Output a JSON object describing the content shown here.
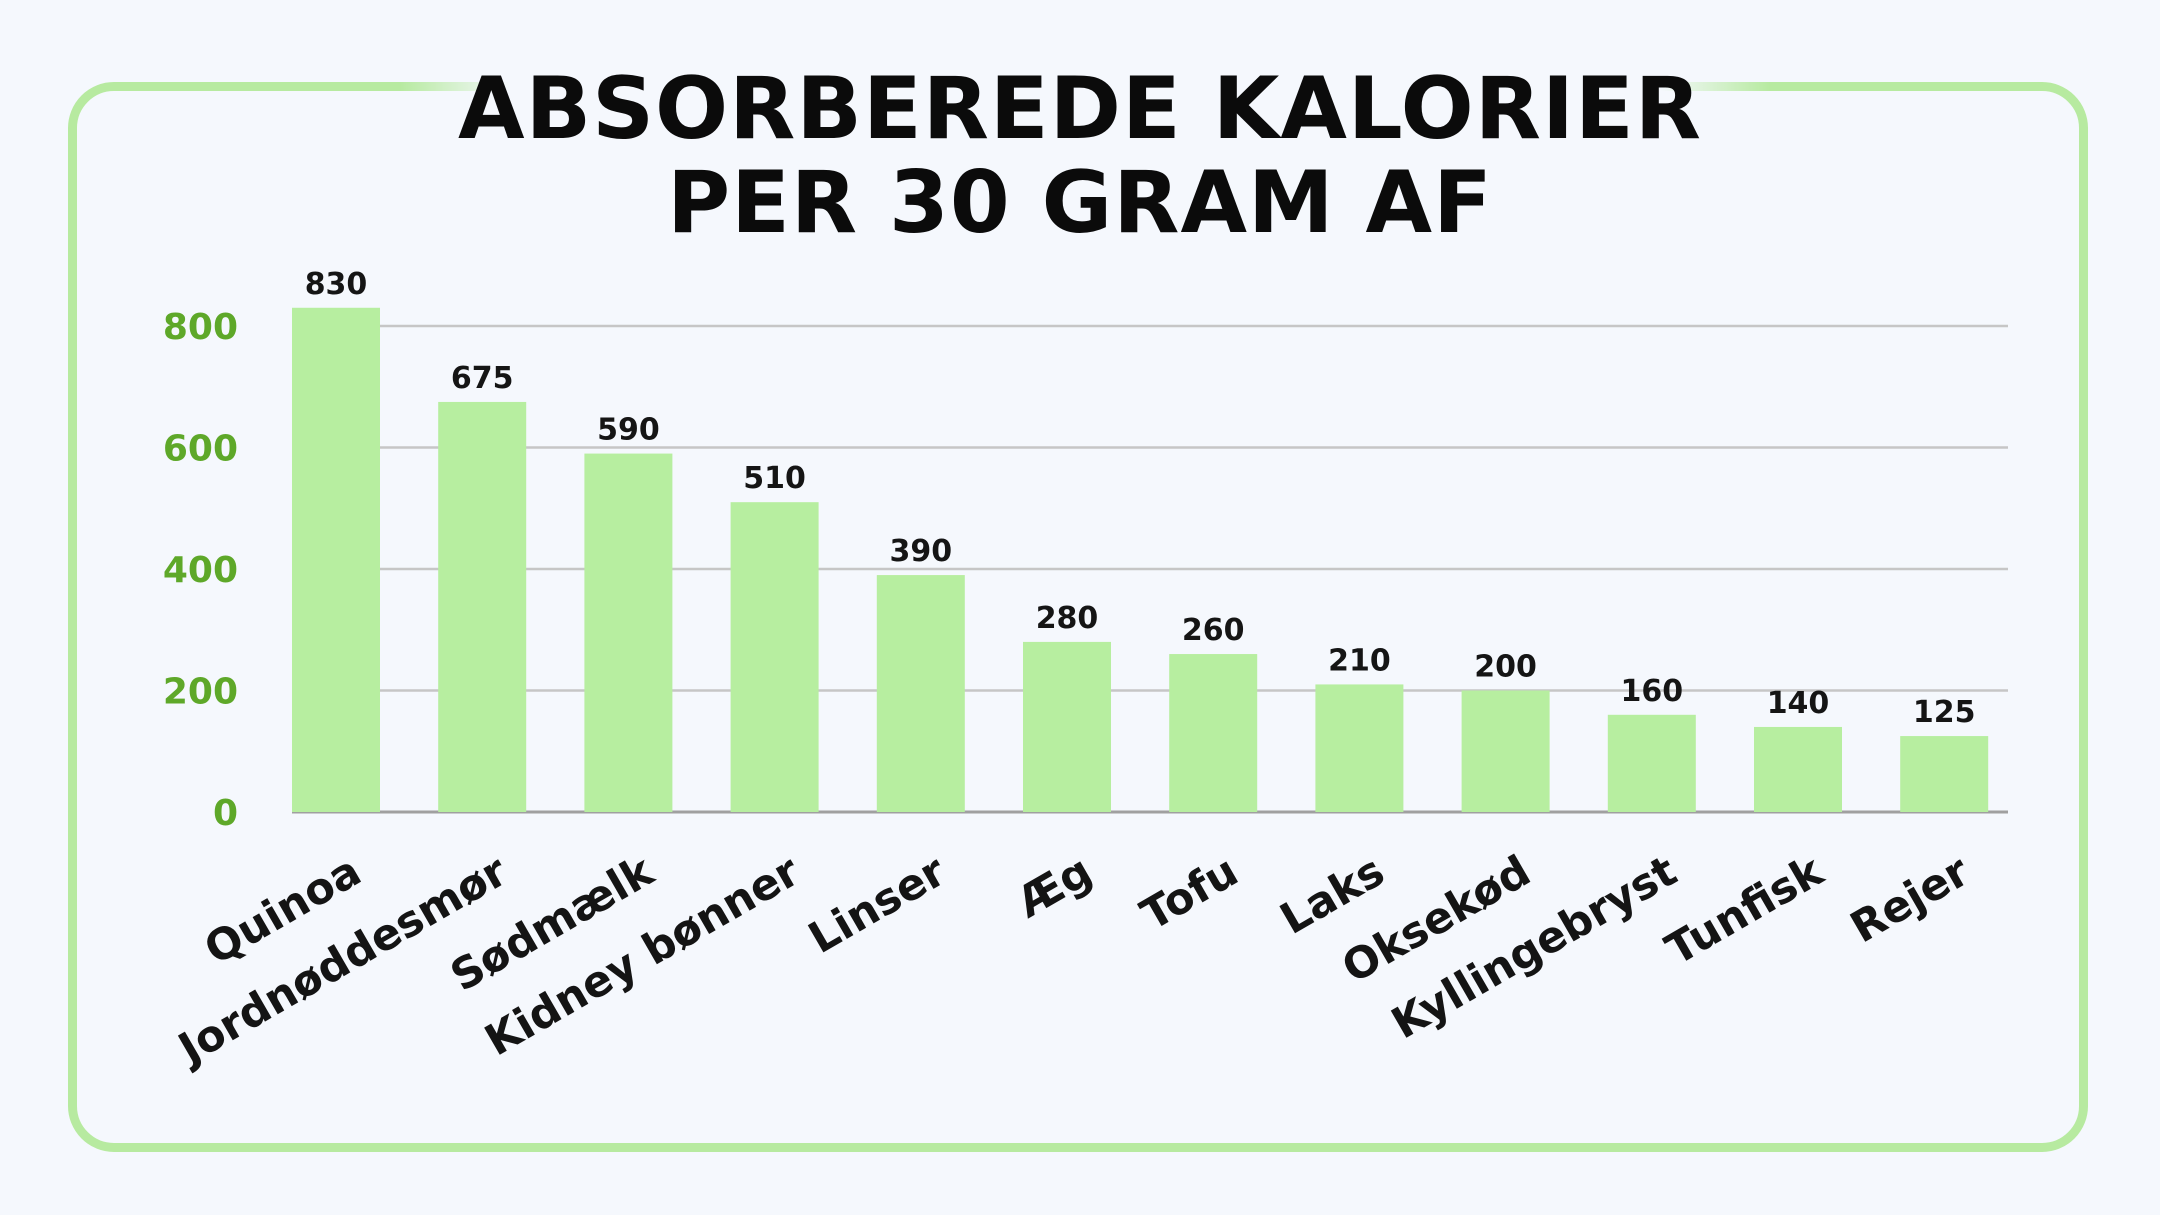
{
  "title_line1": "ABSORBEREDE KALORIER",
  "title_line2": "PER 30 GRAM AF",
  "colors": {
    "bar": "#b7eea0",
    "frame": "#b7eaa0",
    "ytick": "#5ea829",
    "grid": "#c6c6c6",
    "axis": "#a0a0a0"
  },
  "chart_data": {
    "type": "bar",
    "title": "ABSORBEREDE KALORIER PER 30 GRAM AF",
    "categories": [
      "Quinoa",
      "Jordnøddesmør",
      "Sødmælk",
      "Kidney bønner",
      "Linser",
      "Æg",
      "Tofu",
      "Laks",
      "Oksekød",
      "Kyllingebryst",
      "Tunfisk",
      "Rejer"
    ],
    "values": [
      830,
      675,
      590,
      510,
      390,
      280,
      260,
      210,
      200,
      160,
      140,
      125
    ],
    "yticks": [
      0,
      200,
      400,
      600,
      800
    ],
    "ylim": [
      0,
      800
    ],
    "grid": true,
    "xlabel": "",
    "ylabel": ""
  }
}
